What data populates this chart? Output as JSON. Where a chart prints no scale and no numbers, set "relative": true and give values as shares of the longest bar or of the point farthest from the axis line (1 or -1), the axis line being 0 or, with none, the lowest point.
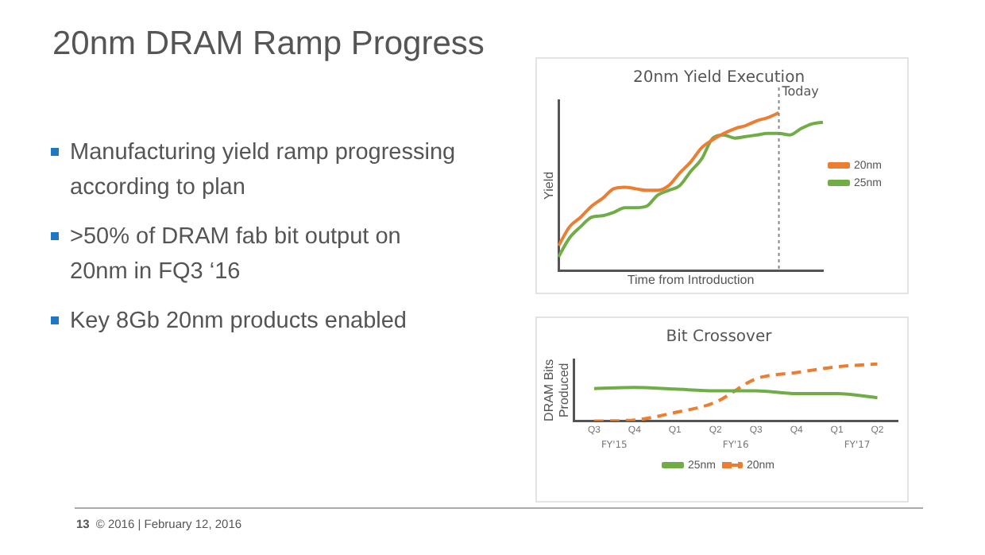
{
  "chart_data": [
    {
      "type": "other",
      "title": "20nm DRAM Ramp Progress",
      "annotations": [
        "Manufacturing yield ramp progressing according to plan",
        ">50% of DRAM fab bit output on 20nm in FQ3 ‘16",
        "Key 8Gb 20nm products enabled",
        "13",
        "© 2016 | February 12, 2016"
      ]
    },
    {
      "type": "line",
      "title": "20nm Yield Execution",
      "xlabel": "Time from Introduction",
      "ylabel": "Yield",
      "relative": true,
      "tick_labels": false,
      "legend": "right",
      "marker": "none",
      "categories": [
        null,
        null,
        null,
        null,
        null,
        null,
        null,
        null,
        null,
        null,
        null,
        null,
        null,
        null,
        null,
        null,
        null,
        null,
        null,
        null,
        null,
        null,
        null,
        null,
        null
      ],
      "series": [
        {
          "name": "20nm",
          "color": "#ed7d31",
          "values": [
            0.16,
            0.28,
            0.34,
            0.41,
            0.46,
            0.52,
            0.53,
            0.52,
            0.51,
            0.51,
            0.54,
            0.62,
            0.69,
            0.78,
            0.83,
            0.87,
            0.9,
            0.92,
            0.95,
            0.97,
            1.0,
            null,
            null,
            null,
            null
          ]
        },
        {
          "name": "25nm",
          "color": "#70ad47",
          "values": [
            0.09,
            0.21,
            0.28,
            0.34,
            0.35,
            0.37,
            0.4,
            0.4,
            0.41,
            0.48,
            0.51,
            0.54,
            0.63,
            0.71,
            0.84,
            0.86,
            0.84,
            0.85,
            0.86,
            0.87,
            0.87,
            0.86,
            0.9,
            0.93,
            0.94
          ]
        }
      ],
      "annotations": [
        "Today"
      ]
    },
    {
      "type": "line",
      "title": "Bit Crossover",
      "ylabel": "DRAM Bits Produced",
      "relative": true,
      "tick_labels": "x",
      "legend": "bottom",
      "marker": "none",
      "categories": [
        "Q3",
        "Q4",
        "Q1",
        "Q2",
        "Q3",
        "Q4",
        "Q1",
        "Q2"
      ],
      "annotations": [
        "FY'15",
        "FY'16",
        "FY'17"
      ],
      "series": [
        {
          "name": "25nm",
          "color": "#70ad47",
          "line_style": "solid",
          "values": [
            0.57,
            0.59,
            0.56,
            0.53,
            0.53,
            0.48,
            0.48,
            0.41
          ]
        },
        {
          "name": "20nm",
          "color": "#ed7d31",
          "line_style": "dashed",
          "values": [
            0,
            0.02,
            0.15,
            0.33,
            0.74,
            0.85,
            0.95,
            1.0
          ]
        }
      ]
    }
  ]
}
